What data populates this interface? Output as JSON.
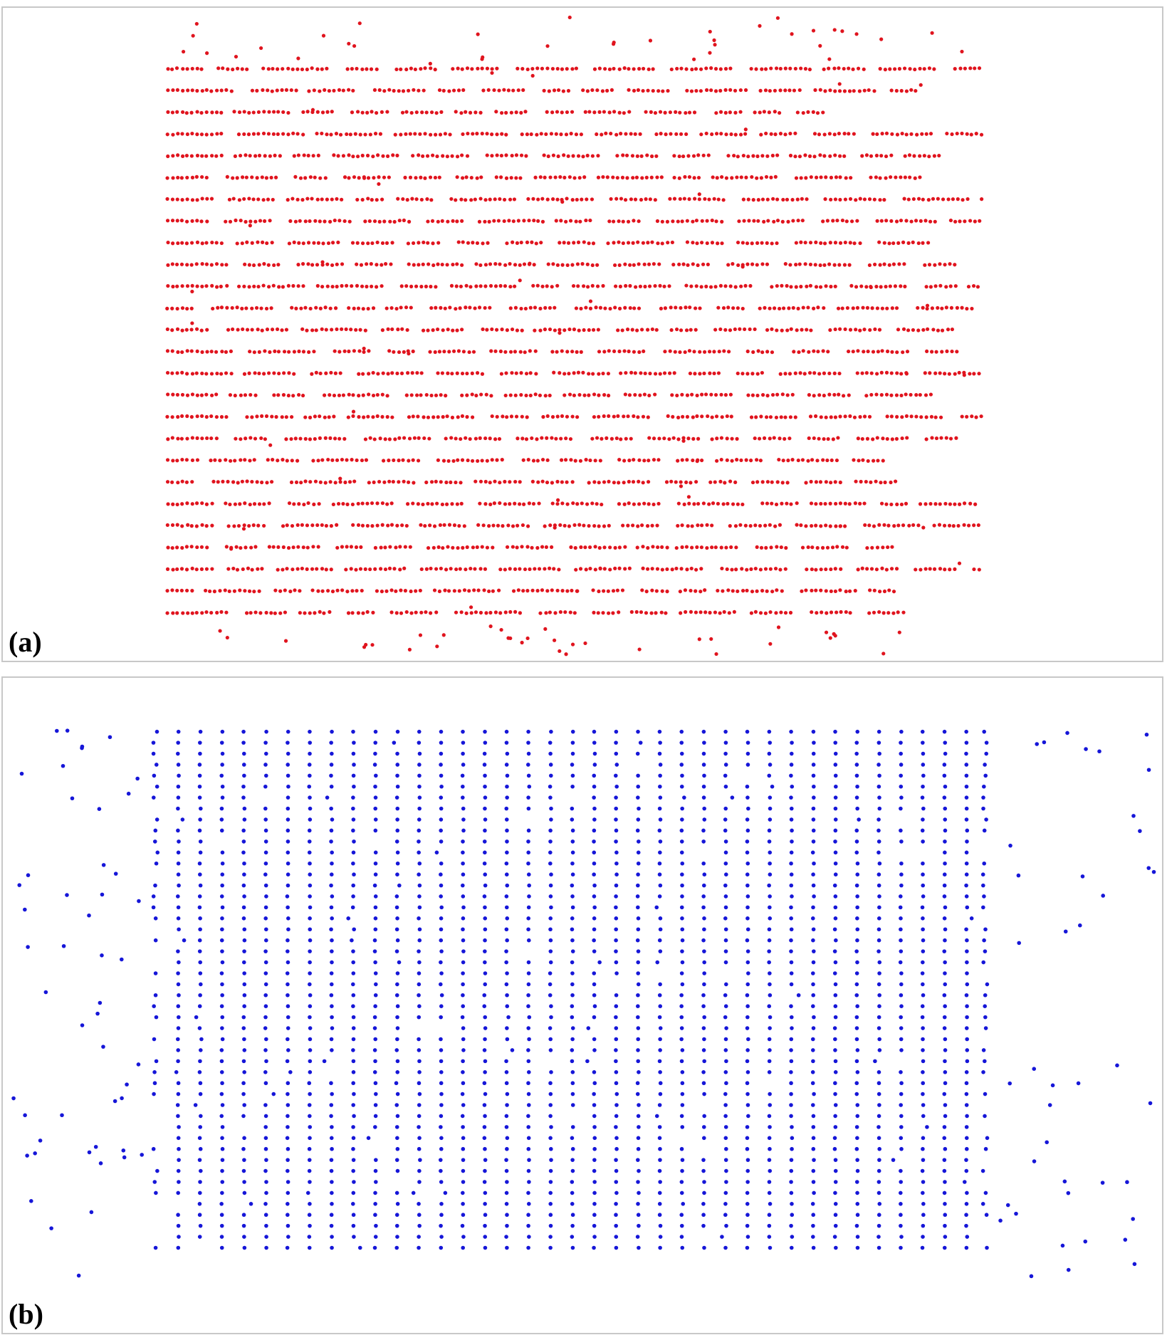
{
  "panels": [
    {
      "id": "a",
      "label": "(a)",
      "dot_color": "#e0141e",
      "pattern": "horizontal-rows",
      "grid": {
        "rows": 26,
        "columns": 37,
        "bundles": 13
      }
    },
    {
      "id": "b",
      "label": "(b)",
      "dot_color": "#1616d8",
      "pattern": "vertical-columns",
      "grid": {
        "rows": 48,
        "columns": 37
      }
    }
  ]
}
